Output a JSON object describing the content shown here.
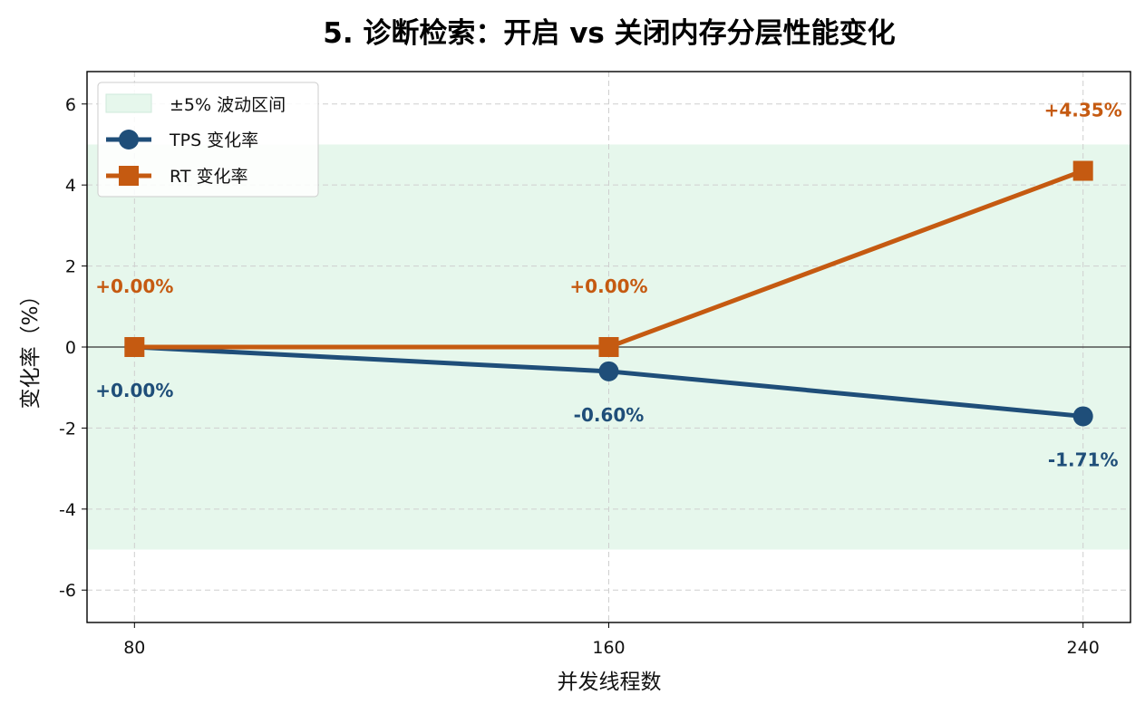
{
  "chart_data": {
    "type": "line",
    "title": "5. 诊断检索：开启 vs 关闭内存分层性能变化",
    "xlabel": "并发线程数",
    "ylabel": "变化率（%）",
    "x": [
      80,
      160,
      240
    ],
    "xticks": [
      "80",
      "160",
      "240"
    ],
    "xlim": [
      72,
      248
    ],
    "ylim": [
      -6.8,
      6.8
    ],
    "yticks": [
      6,
      4,
      2,
      0,
      -2,
      -4,
      -6
    ],
    "ytick_labels": [
      "6",
      "4",
      "2",
      "0",
      "-2",
      "-4",
      "-6"
    ],
    "grid": true,
    "legend_position": "top-left",
    "band": {
      "label": "±5% 波动区间",
      "range": [
        -5,
        5
      ],
      "color": "#e6f7ec"
    },
    "series": [
      {
        "name": "TPS 变化率",
        "values": [
          0.0,
          -0.6,
          -1.71
        ],
        "labels": [
          "+0.00%",
          "-0.60%",
          "-1.71%"
        ],
        "color": "#1f4e79",
        "marker": "circle"
      },
      {
        "name": "RT 变化率",
        "values": [
          0.0,
          0.0,
          4.35
        ],
        "labels": [
          "+0.00%",
          "+0.00%",
          "+4.35%"
        ],
        "color": "#c55a11",
        "marker": "square"
      }
    ]
  }
}
